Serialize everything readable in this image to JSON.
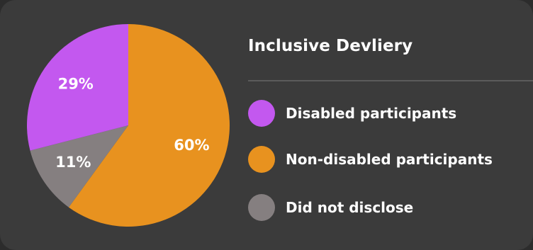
{
  "chart_data": {
    "type": "pie",
    "title": "Inclusive Devliery",
    "legend_position": "right",
    "slices": [
      {
        "label": "Non-disabled participants",
        "value": 60,
        "display": "60%",
        "color": "#e8921f"
      },
      {
        "label": "Did not disclose",
        "value": 11,
        "display": "11%",
        "color": "#857f80"
      },
      {
        "label": "Disabled participants",
        "value": 29,
        "display": "29%",
        "color": "#c358ef"
      }
    ],
    "legend": [
      {
        "label": "Disabled participants",
        "color": "#c358ef"
      },
      {
        "label": "Non-disabled participants",
        "color": "#e8921f"
      },
      {
        "label": "Did not disclose",
        "color": "#857f80"
      }
    ]
  },
  "colors": {
    "background": "#3b3b3b",
    "divider": "#5b5b5b",
    "text": "#ffffff"
  }
}
